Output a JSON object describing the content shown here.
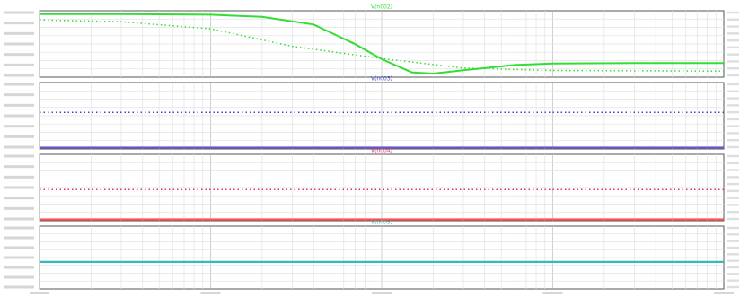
{
  "chart_data": [
    {
      "type": "line",
      "panel": 1,
      "title": "V(n002)",
      "x_scale": "log",
      "grid": true,
      "series": [
        {
          "name": "",
          "style": "solid",
          "color": "#33dd33",
          "points": [
            [
              1,
              0.0
            ],
            [
              3,
              0.0
            ],
            [
              10,
              -0.2
            ],
            [
              20,
              -0.9
            ],
            [
              40,
              -3.4
            ],
            [
              70,
              -9.8
            ],
            [
              100,
              -14.7
            ],
            [
              150,
              -19.0
            ],
            [
              200,
              -19.4
            ],
            [
              300,
              -18.3
            ],
            [
              600,
              -16.6
            ],
            [
              1000,
              -16.1
            ],
            [
              3000,
              -16.0
            ],
            [
              10000,
              -16.0
            ]
          ]
        },
        {
          "name": "",
          "style": "dotted",
          "color": "#33dd33",
          "points": [
            [
              1,
              -1.9
            ],
            [
              3,
              -2.5
            ],
            [
              10,
              -4.8
            ],
            [
              30,
              -10.5
            ],
            [
              100,
              -14.5
            ],
            [
              300,
              -17.6
            ],
            [
              1000,
              -18.4
            ],
            [
              10000,
              -18.6
            ]
          ]
        }
      ]
    },
    {
      "type": "line",
      "panel": 2,
      "title": "V(n003)",
      "x_scale": "log",
      "grid": true,
      "series": [
        {
          "name": "",
          "style": "dotted",
          "color": "#4444cc",
          "level_fraction": 0.55
        },
        {
          "name": "",
          "style": "solid",
          "color": "#6a5acd",
          "level_fraction": 0.02
        }
      ]
    },
    {
      "type": "line",
      "panel": 3,
      "title": "V(n004)",
      "x_scale": "log",
      "grid": true,
      "series": [
        {
          "name": "",
          "style": "dotted",
          "color": "#dd3366",
          "level_fraction": 0.47
        },
        {
          "name": "",
          "style": "solid",
          "color": "#ff5555",
          "level_fraction": 0.02
        }
      ]
    },
    {
      "type": "line",
      "panel": 4,
      "title": "V(n005)",
      "x_scale": "log",
      "grid": true,
      "series": [
        {
          "name": "",
          "style": "solid",
          "color": "#33bbbb",
          "level_fraction": 0.43
        }
      ]
    }
  ]
}
